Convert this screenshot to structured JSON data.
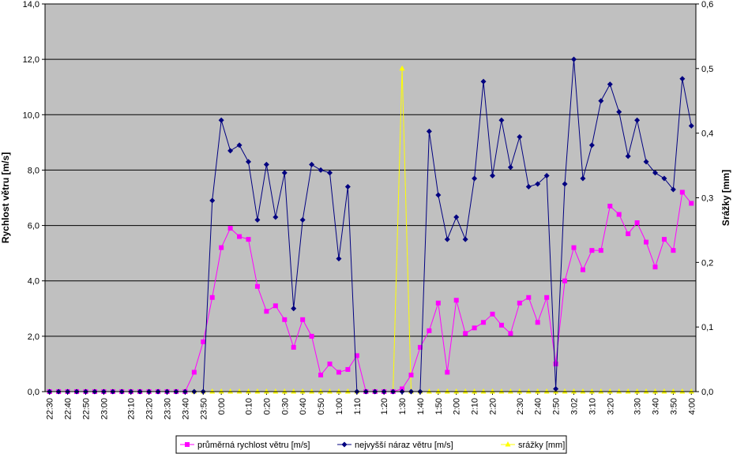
{
  "chart_data": {
    "type": "line",
    "ylabel_left": "Rychlost větru [m/s]",
    "ylabel_right": "Srážky [mm]",
    "ylim_left": [
      0,
      14
    ],
    "ylim_right": [
      0,
      0.6
    ],
    "yticks_left": [
      "0,0",
      "2,0",
      "4,0",
      "6,0",
      "8,0",
      "10,0",
      "12,0",
      "14,0"
    ],
    "yticks_right": [
      "0,0",
      "0,1",
      "0,2",
      "0,3",
      "0,4",
      "0,5",
      "0,6"
    ],
    "x_tick_labels": [
      "22:30",
      "22:40",
      "22:50",
      "23:00",
      "23:10",
      "23:20",
      "23:30",
      "23:40",
      "23:50",
      "0:00",
      "0:10",
      "0:20",
      "0:30",
      "0:40",
      "0:50",
      "1:00",
      "1:10",
      "1:20",
      "1:30",
      "1:40",
      "1:50",
      "2:00",
      "2:10",
      "2:20",
      "2:30",
      "2:40",
      "2:50",
      "3:02",
      "3:10",
      "3:20",
      "3:30",
      "3:40",
      "3:50",
      "4:00"
    ],
    "grid": true,
    "legend_position": "bottom",
    "colors": {
      "plot_background": "#c0c0c0",
      "avg_series": "#ff00ff",
      "gust_series": "#000080",
      "rain_series": "#ffff00"
    },
    "series": [
      {
        "name": "průměrná rychlost větru [m/s]",
        "axis": "left",
        "color": "#ff00ff",
        "marker": "square",
        "values": [
          0,
          0,
          0,
          0,
          0,
          0,
          0,
          0,
          0,
          0,
          0,
          0,
          0,
          0,
          0,
          0,
          0.7,
          1.8,
          3.4,
          5.2,
          5.9,
          5.6,
          5.5,
          3.8,
          2.9,
          3.1,
          2.6,
          1.6,
          2.6,
          2.0,
          0.6,
          1.0,
          0.7,
          0.8,
          1.3,
          0,
          0,
          0,
          0,
          0.1,
          0.6,
          1.6,
          2.2,
          3.2,
          0.7,
          3.3,
          2.1,
          2.3,
          2.5,
          2.8,
          2.4,
          2.1,
          3.2,
          3.4,
          2.5,
          3.4,
          1.0,
          4.0,
          5.2,
          4.4,
          5.1,
          5.1,
          6.7,
          6.4,
          5.7,
          6.1,
          5.4,
          4.5,
          5.5,
          5.1,
          7.2,
          6.8
        ]
      },
      {
        "name": "nejvyšší náraz větru [m/s]",
        "axis": "left",
        "color": "#000080",
        "marker": "diamond",
        "values": [
          0,
          0,
          0,
          0,
          0,
          0,
          0,
          0,
          0,
          0,
          0,
          0,
          0,
          0,
          0,
          0,
          0,
          0,
          6.9,
          9.8,
          8.7,
          8.9,
          8.3,
          6.2,
          8.2,
          6.3,
          7.9,
          3.0,
          6.2,
          8.2,
          8.0,
          7.9,
          4.8,
          7.4,
          0,
          0,
          0,
          0,
          0,
          0,
          0,
          0,
          9.4,
          7.1,
          5.5,
          6.3,
          5.5,
          7.7,
          11.2,
          7.8,
          9.8,
          8.1,
          9.2,
          7.4,
          7.5,
          7.8,
          0.1,
          7.5,
          12.0,
          7.7,
          8.9,
          10.5,
          11.1,
          10.1,
          8.5,
          9.8,
          8.3,
          7.9,
          7.7,
          7.3,
          11.3,
          9.6
        ]
      },
      {
        "name": "srážky [mm]",
        "axis": "right",
        "color": "#ffff00",
        "marker": "triangle",
        "values": [
          0,
          0,
          0,
          0,
          0,
          0,
          0,
          0,
          0,
          0,
          0,
          0,
          0,
          0,
          0,
          0,
          0,
          0,
          0,
          0,
          0,
          0,
          0,
          0,
          0,
          0,
          0,
          0,
          0,
          0,
          0,
          0,
          0,
          0,
          0,
          0,
          0,
          0,
          0,
          0.5,
          0,
          0,
          0,
          0,
          0,
          0,
          0,
          0,
          0,
          0,
          0,
          0,
          0,
          0,
          0,
          0,
          0,
          0,
          0,
          0,
          0,
          0,
          0,
          0,
          0,
          0,
          0,
          0,
          0,
          0,
          0,
          0
        ]
      }
    ]
  }
}
